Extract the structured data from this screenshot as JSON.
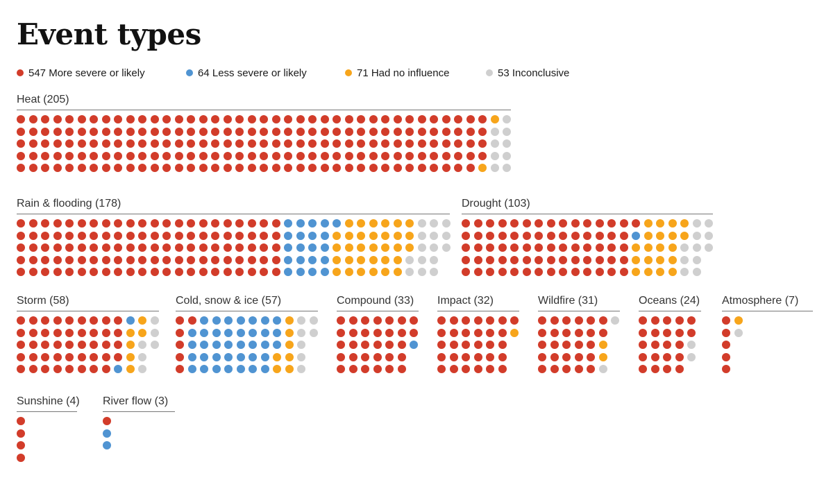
{
  "title": "Event types",
  "colors": {
    "red": "#d23c2a",
    "blue": "#5094d2",
    "orange": "#f7a51b",
    "gray": "#cfcfcf"
  },
  "legend": [
    {
      "text": "547 More severe or likely",
      "color_key": "red"
    },
    {
      "text": "64 Less severe or likely",
      "color_key": "blue"
    },
    {
      "text": "71 Had no influence",
      "color_key": "orange"
    },
    {
      "text": "53 Inconclusive",
      "color_key": "gray"
    }
  ],
  "sections": [
    {
      "id": "heat",
      "label": "Heat (205)",
      "total": 205,
      "counts": {
        "red": 194,
        "blue": 0,
        "orange": 2,
        "gray": 9
      }
    },
    {
      "id": "rain",
      "label": "Rain & flooding (178)",
      "total": 178,
      "counts": {
        "red": 110,
        "blue": 21,
        "orange": 32,
        "gray": 15
      }
    },
    {
      "id": "drought",
      "label": "Drought (103)",
      "total": 103,
      "counts": {
        "red": 71,
        "blue": 1,
        "orange": 20,
        "gray": 11
      }
    },
    {
      "id": "storm",
      "label": "Storm (58)",
      "total": 58,
      "counts": {
        "red": 44,
        "blue": 2,
        "orange": 6,
        "gray": 6
      }
    },
    {
      "id": "cold",
      "label": "Cold, snow & ice (57)",
      "total": 57,
      "counts": {
        "red": 6,
        "blue": 37,
        "orange": 7,
        "gray": 7
      }
    },
    {
      "id": "compound",
      "label": "Compound (33)",
      "total": 33,
      "counts": {
        "red": 32,
        "blue": 1,
        "orange": 0,
        "gray": 0
      }
    },
    {
      "id": "impact",
      "label": "Impact (32)",
      "total": 32,
      "counts": {
        "red": 31,
        "blue": 0,
        "orange": 1,
        "gray": 0
      }
    },
    {
      "id": "wildfire",
      "label": "Wildfire (31)",
      "total": 31,
      "counts": {
        "red": 27,
        "blue": 0,
        "orange": 2,
        "gray": 2
      }
    },
    {
      "id": "oceans",
      "label": "Oceans (24)",
      "total": 24,
      "counts": {
        "red": 22,
        "blue": 0,
        "orange": 0,
        "gray": 2
      }
    },
    {
      "id": "atmosphere",
      "label": "Atmosphere (7)",
      "total": 7,
      "counts": {
        "red": 5,
        "blue": 0,
        "orange": 1,
        "gray": 1
      }
    },
    {
      "id": "sunshine",
      "label": "Sunshine (4)",
      "total": 4,
      "counts": {
        "red": 4,
        "blue": 0,
        "orange": 0,
        "gray": 0
      }
    },
    {
      "id": "riverflow",
      "label": "River flow (3)",
      "total": 3,
      "counts": {
        "red": 1,
        "blue": 2,
        "orange": 0,
        "gray": 0
      }
    }
  ],
  "chart_data": {
    "type": "waffle",
    "title": "Event types",
    "unit_note": "one dot = one study finding, dots fill top-to-bottom then left-to-right, 5 rows per block",
    "legend_position": "top",
    "legend_totals": {
      "More severe or likely": 547,
      "Less severe or likely": 64,
      "Had no influence": 71,
      "Inconclusive": 53
    },
    "categories": [
      "Heat",
      "Rain & flooding",
      "Drought",
      "Storm",
      "Cold, snow & ice",
      "Compound",
      "Impact",
      "Wildfire",
      "Oceans",
      "Atmosphere",
      "Sunshine",
      "River flow"
    ],
    "category_totals": [
      205,
      178,
      103,
      58,
      57,
      33,
      32,
      31,
      24,
      7,
      4,
      3
    ],
    "series": [
      {
        "name": "More severe or likely",
        "color": "#d23c2a",
        "values": [
          194,
          110,
          71,
          44,
          6,
          32,
          31,
          27,
          22,
          5,
          4,
          1
        ]
      },
      {
        "name": "Less severe or likely",
        "color": "#5094d2",
        "values": [
          0,
          21,
          1,
          2,
          37,
          1,
          0,
          0,
          0,
          0,
          0,
          2
        ]
      },
      {
        "name": "Had no influence",
        "color": "#f7a51b",
        "values": [
          2,
          32,
          20,
          6,
          7,
          0,
          1,
          2,
          0,
          1,
          0,
          0
        ]
      },
      {
        "name": "Inconclusive",
        "color": "#cfcfcf",
        "values": [
          9,
          15,
          11,
          6,
          7,
          0,
          0,
          2,
          2,
          1,
          0,
          0
        ]
      }
    ]
  }
}
